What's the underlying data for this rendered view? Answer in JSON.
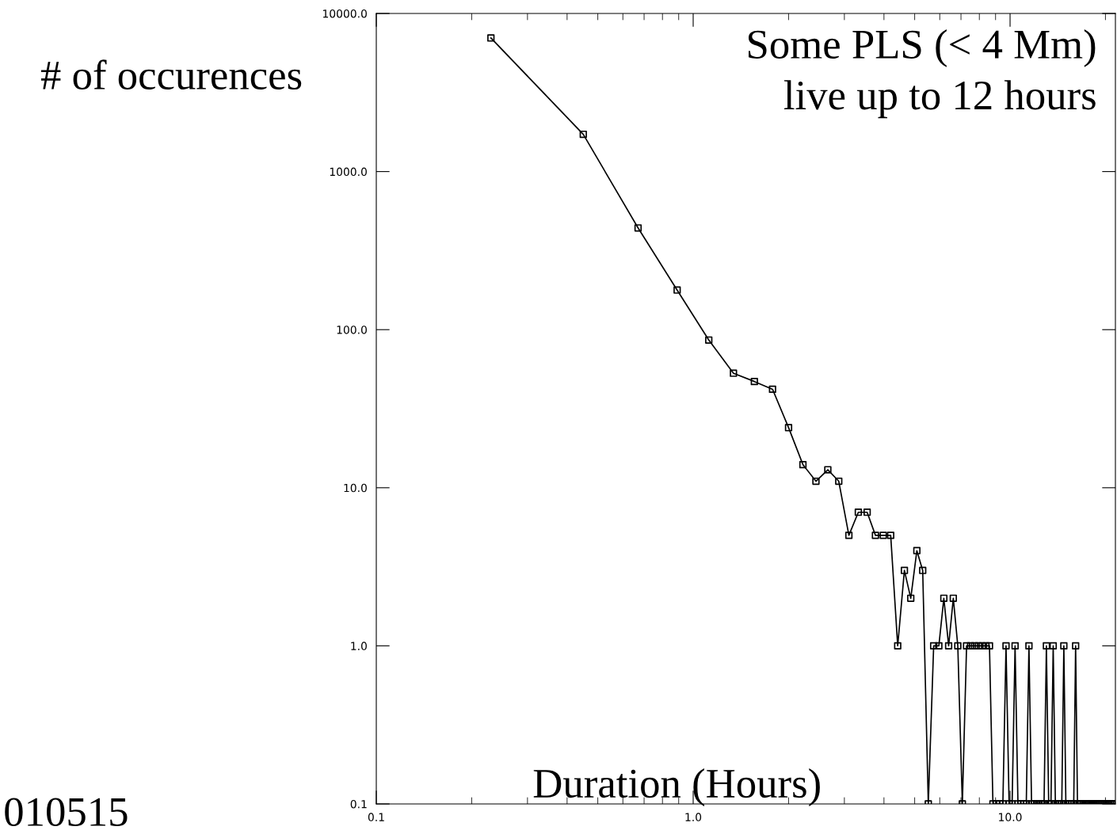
{
  "chart_data": {
    "type": "line",
    "xlabel": "Duration (Hours)",
    "ylabel": "# of occurences",
    "annotations": [
      "Some PLS (< 4 Mm)\nlive up to 12 hours",
      "010515"
    ],
    "log": "xy",
    "marker": "square",
    "line_style": "solid",
    "grid": false,
    "legend": false,
    "xlim": [
      0.1,
      21.5
    ],
    "ylim": [
      0.1,
      10000
    ],
    "xticks": [
      {
        "value": 0.1,
        "label": "0.1"
      },
      {
        "value": 1,
        "label": "1.0"
      },
      {
        "value": 10,
        "label": "10.0"
      }
    ],
    "yticks": [
      {
        "value": 0.1,
        "label": "0.1"
      },
      {
        "value": 1,
        "label": "1.0"
      },
      {
        "value": 10,
        "label": "10.0"
      },
      {
        "value": 100,
        "label": "100.0"
      },
      {
        "value": 1000,
        "label": "1000.0"
      },
      {
        "value": 10000,
        "label": "10000.0"
      }
    ],
    "series": [
      {
        "color": "#000000",
        "x": [
          0.23,
          0.45,
          0.67,
          0.89,
          1.12,
          1.34,
          1.56,
          1.78,
          2.0,
          2.22,
          2.44,
          2.66,
          2.88,
          3.1,
          3.32,
          3.54,
          3.76,
          3.98,
          4.2,
          4.42,
          4.64,
          4.86,
          5.08,
          5.3,
          5.52,
          5.74,
          5.96,
          6.18,
          6.4,
          6.62,
          6.84,
          7.07,
          7.29,
          7.51,
          7.73,
          7.95,
          8.17,
          8.39,
          8.61,
          8.83,
          9.05,
          9.27,
          9.49,
          9.71,
          9.93,
          10.15,
          10.37,
          10.59,
          10.81,
          11.03,
          11.25,
          11.47,
          11.69,
          11.91,
          12.13,
          12.35,
          12.58,
          12.8,
          13.02,
          13.24,
          13.46,
          13.68,
          13.9,
          14.12,
          14.34,
          14.56,
          14.78,
          15.0,
          15.22,
          15.44,
          15.66,
          15.88,
          16.1,
          16.32,
          16.54,
          16.76,
          16.98,
          17.2,
          17.42,
          17.64,
          17.86,
          18.09,
          18.31,
          18.53,
          18.75,
          18.97,
          19.19,
          19.41,
          19.63,
          19.85,
          20.07,
          20.29,
          20.51,
          20.73,
          20.95,
          21.17,
          21.39
        ],
        "values": [
          7000,
          1720,
          440,
          178,
          86,
          53,
          47,
          42,
          24,
          14,
          11,
          13,
          11,
          5,
          7,
          7,
          5,
          5,
          5,
          1,
          3,
          2,
          4,
          3,
          0.1,
          1,
          1,
          2,
          1,
          2,
          1,
          0.1,
          1,
          1,
          1,
          1,
          1,
          1,
          1,
          0.1,
          0.1,
          0.1,
          0.1,
          1,
          0.1,
          0.1,
          1,
          0.1,
          0.1,
          0.1,
          0.1,
          1,
          0.1,
          0.1,
          0.1,
          0.1,
          0.1,
          0.1,
          1,
          0.1,
          0.1,
          1,
          0.1,
          0.1,
          0.1,
          0.1,
          1,
          0.1,
          0.1,
          0.1,
          0.1,
          0.1,
          1,
          0.1,
          0.1,
          0.1,
          0.1,
          0.1,
          0.1,
          0.1,
          0.1,
          0.1,
          0.1,
          0.1,
          0.1,
          0.1,
          0.1,
          0.1,
          0.1,
          0.1,
          0.1,
          0.1,
          0.1,
          0.1,
          0.1,
          0.1,
          0.1
        ]
      }
    ]
  }
}
